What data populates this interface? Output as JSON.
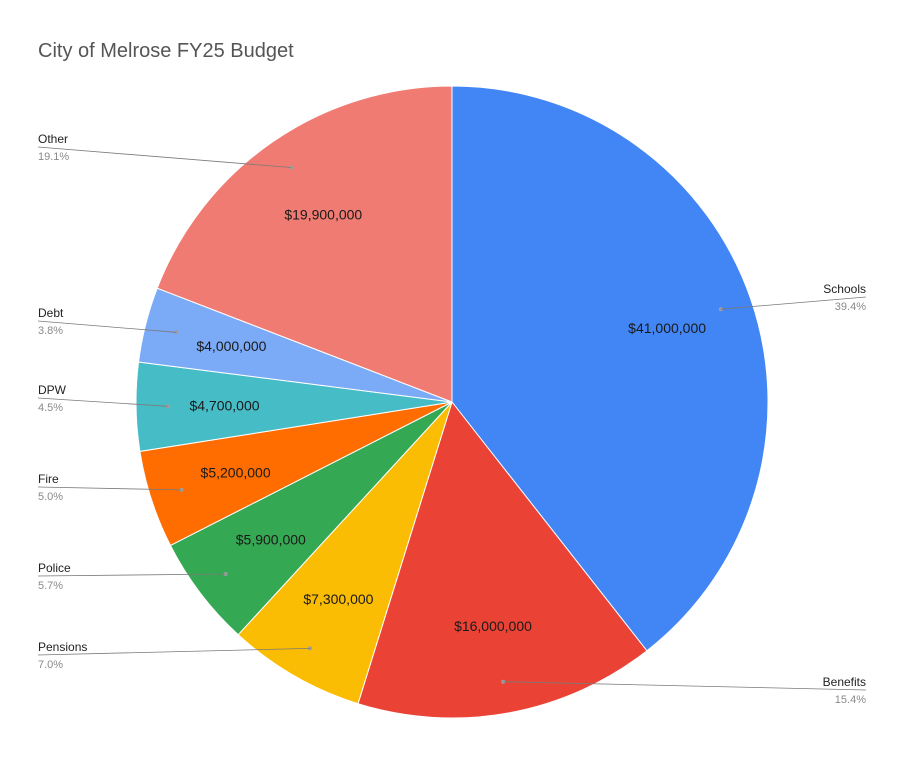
{
  "chart_data": {
    "type": "pie",
    "title": "City of Melrose FY25 Budget",
    "slices": [
      {
        "label": "Schools",
        "value": 41000000,
        "value_label": "$41,000,000",
        "percent_label": "39.4%",
        "color": "#4285f4"
      },
      {
        "label": "Benefits",
        "value": 16000000,
        "value_label": "$16,000,000",
        "percent_label": "15.4%",
        "color": "#ea4335"
      },
      {
        "label": "Pensions",
        "value": 7300000,
        "value_label": "$7,300,000",
        "percent_label": "7.0%",
        "color": "#fbbc04"
      },
      {
        "label": "Police",
        "value": 5900000,
        "value_label": "$5,900,000",
        "percent_label": "5.7%",
        "color": "#34a853"
      },
      {
        "label": "Fire",
        "value": 5200000,
        "value_label": "$5,200,000",
        "percent_label": "5.0%",
        "color": "#ff6d01"
      },
      {
        "label": "DPW",
        "value": 4700000,
        "value_label": "$4,700,000",
        "percent_label": "4.5%",
        "color": "#46bdc6"
      },
      {
        "label": "Debt",
        "value": 4000000,
        "value_label": "$4,000,000",
        "percent_label": "3.8%",
        "color": "#7baaf7"
      },
      {
        "label": "Other",
        "value": 19900000,
        "value_label": "$19,900,000",
        "percent_label": "19.1%",
        "color": "#f07b72"
      }
    ],
    "start": "top",
    "direction": "clockwise",
    "legend": "leader-line labels on both sides"
  }
}
